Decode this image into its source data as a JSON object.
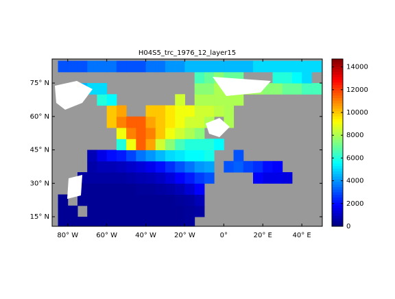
{
  "chart_data": {
    "type": "heatmap-map",
    "title": "H04S5_trc_1976_12_layer15",
    "x": [
      -90,
      -85,
      -80,
      -75,
      -70,
      -65,
      -60,
      -55,
      -50,
      -45,
      -40,
      -35,
      -30,
      -25,
      -20,
      -15,
      -10,
      -5,
      0,
      5,
      10,
      15,
      20,
      25,
      30,
      35,
      40,
      45
    ],
    "y": [
      10,
      15,
      20,
      25,
      30,
      35,
      40,
      45,
      50,
      55,
      60,
      65,
      70,
      75,
      80
    ],
    "values": [
      [
        null,
        300,
        300,
        300,
        300,
        300,
        300,
        300,
        300,
        300,
        300,
        300,
        300,
        300,
        400,
        null,
        null,
        null,
        null,
        null,
        null,
        null,
        null,
        null,
        null,
        null,
        null,
        null
      ],
      [
        null,
        300,
        300,
        null,
        300,
        300,
        300,
        300,
        300,
        300,
        300,
        300,
        300,
        300,
        400,
        500,
        null,
        null,
        null,
        null,
        null,
        null,
        null,
        null,
        null,
        null,
        null,
        null
      ],
      [
        null,
        300,
        null,
        300,
        300,
        300,
        300,
        300,
        300,
        300,
        300,
        300,
        300,
        400,
        500,
        800,
        null,
        null,
        null,
        null,
        null,
        null,
        null,
        null,
        null,
        null,
        null,
        null
      ],
      [
        null,
        null,
        null,
        300,
        300,
        300,
        300,
        300,
        300,
        400,
        400,
        500,
        600,
        800,
        1200,
        1800,
        null,
        null,
        null,
        null,
        null,
        null,
        null,
        null,
        null,
        null,
        null,
        null
      ],
      [
        null,
        null,
        null,
        500,
        500,
        500,
        500,
        500,
        600,
        700,
        800,
        1000,
        1300,
        1800,
        2200,
        2700,
        3000,
        null,
        null,
        null,
        null,
        1800,
        1500,
        1500,
        1400,
        null,
        null,
        null
      ],
      [
        null,
        null,
        null,
        null,
        600,
        800,
        800,
        900,
        1100,
        1300,
        1600,
        2000,
        2500,
        3000,
        3500,
        4000,
        4200,
        null,
        3000,
        3200,
        2800,
        2500,
        2000,
        1800,
        null,
        null,
        null,
        null
      ],
      [
        null,
        null,
        null,
        null,
        800,
        1500,
        2000,
        2200,
        2800,
        3500,
        4000,
        4500,
        5000,
        5200,
        5500,
        5500,
        5800,
        null,
        null,
        3000,
        null,
        null,
        null,
        null,
        null,
        null,
        null,
        null
      ],
      [
        null,
        null,
        null,
        null,
        null,
        null,
        null,
        6000,
        9000,
        11500,
        10500,
        8500,
        7500,
        6500,
        6000,
        6000,
        6000,
        5500,
        null,
        null,
        null,
        null,
        null,
        null,
        null,
        null,
        null,
        null
      ],
      [
        null,
        null,
        null,
        null,
        null,
        null,
        null,
        9000,
        11000,
        11500,
        11000,
        10000,
        9000,
        8500,
        8000,
        7500,
        null,
        null,
        null,
        null,
        null,
        null,
        null,
        null,
        null,
        null,
        null,
        null
      ],
      [
        null,
        null,
        null,
        null,
        null,
        null,
        10000,
        11000,
        11500,
        11500,
        10500,
        10000,
        9500,
        9000,
        8500,
        8500,
        8000,
        null,
        8000,
        null,
        null,
        null,
        null,
        null,
        null,
        null,
        null,
        null
      ],
      [
        null,
        null,
        null,
        null,
        null,
        null,
        10000,
        10500,
        null,
        null,
        10000,
        10000,
        9500,
        9000,
        9000,
        8500,
        8500,
        8200,
        8000,
        null,
        null,
        null,
        null,
        null,
        null,
        null,
        null,
        null
      ],
      [
        null,
        null,
        null,
        null,
        null,
        6000,
        5500,
        null,
        null,
        null,
        null,
        null,
        null,
        8500,
        null,
        8000,
        8000,
        8000,
        8000,
        8000,
        null,
        null,
        null,
        null,
        null,
        null,
        null,
        null
      ],
      [
        null,
        null,
        4000,
        4500,
        5000,
        5000,
        null,
        null,
        null,
        null,
        null,
        null,
        null,
        null,
        null,
        7500,
        7500,
        8000,
        8000,
        8000,
        8000,
        7800,
        7500,
        7500,
        7000,
        7000,
        6500,
        6500
      ],
      [
        null,
        null,
        null,
        null,
        null,
        null,
        null,
        null,
        null,
        null,
        null,
        null,
        null,
        null,
        null,
        6500,
        7000,
        7500,
        7000,
        7000,
        null,
        null,
        null,
        6000,
        6000,
        5500,
        5000,
        null
      ],
      [
        null,
        3000,
        3000,
        3000,
        3500,
        3500,
        3500,
        3000,
        3000,
        3000,
        3500,
        3500,
        4000,
        4000,
        4500,
        4500,
        4500,
        4500,
        4500,
        4500,
        4500,
        5000,
        5000,
        5000,
        5000,
        5000,
        5000,
        5000
      ]
    ],
    "xlim": [
      -88,
      50.5
    ],
    "ylim": [
      10.7,
      85.8
    ],
    "xticks": [
      {
        "value": -80,
        "label": "80° W"
      },
      {
        "value": -60,
        "label": "60° W"
      },
      {
        "value": -40,
        "label": "40° W"
      },
      {
        "value": -20,
        "label": "20° W"
      },
      {
        "value": 0,
        "label": "0°"
      },
      {
        "value": 20,
        "label": "20° E"
      },
      {
        "value": 40,
        "label": "40° E"
      }
    ],
    "yticks": [
      {
        "value": 15,
        "label": "15° N"
      },
      {
        "value": 30,
        "label": "30° N"
      },
      {
        "value": 45,
        "label": "45° N"
      },
      {
        "value": 60,
        "label": "60° N"
      },
      {
        "value": 75,
        "label": "75° N"
      }
    ],
    "clim": [
      0,
      14700
    ],
    "cticks": [
      0,
      2000,
      4000,
      6000,
      8000,
      10000,
      12000,
      14000
    ],
    "colormap": "jet",
    "land_color": "#999999"
  }
}
